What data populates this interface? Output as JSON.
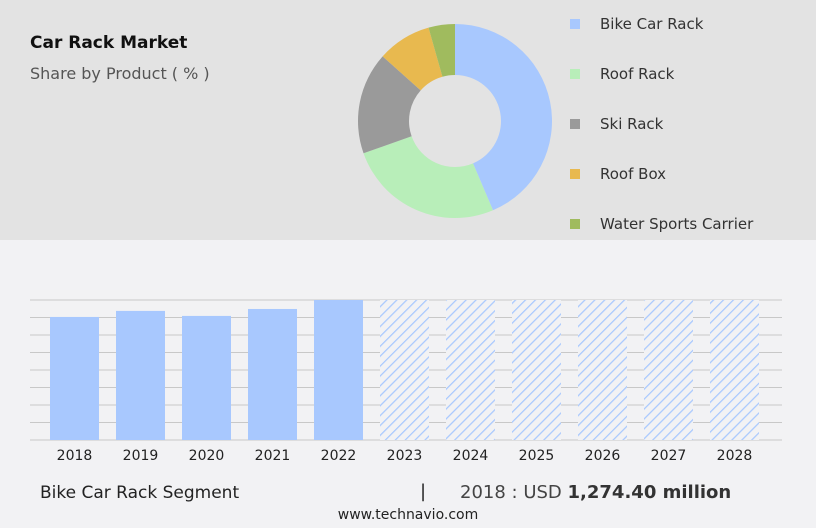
{
  "header": {
    "title": "Car Rack Market",
    "subtitle": "Share by Product ( % )"
  },
  "chart_data": [
    {
      "type": "pie",
      "variant": "donut",
      "title": "Car Rack Market",
      "subtitle": "Share by Product ( % )",
      "legend_position": "right",
      "slices": [
        {
          "name": "Bike Car Rack",
          "value": 43.6,
          "color": "#a8c8fe"
        },
        {
          "name": "Roof Rack",
          "value": 26,
          "color": "#b8eeb9"
        },
        {
          "name": "Ski Rack",
          "value": 17,
          "color": "#9a9a9a"
        },
        {
          "name": "Roof Box",
          "value": 9,
          "color": "#e8b94f"
        },
        {
          "name": "Water Sports Carrier",
          "value": 4.4,
          "color": "#a0bb5e"
        }
      ]
    },
    {
      "type": "bar",
      "categories": [
        "2018",
        "2019",
        "2020",
        "2021",
        "2022",
        "2023",
        "2024",
        "2025",
        "2026",
        "2027",
        "2028"
      ],
      "values": [
        1274.4,
        1337,
        1285,
        1357,
        1450,
        null,
        null,
        null,
        null,
        null,
        null
      ],
      "forecast": [
        "2023",
        "2024",
        "2025",
        "2026",
        "2027",
        "2028"
      ],
      "ylim": [
        0,
        1450
      ],
      "grid": true,
      "color": "#a8c8fe",
      "legend_position": "none"
    }
  ],
  "footer": {
    "segment": "Bike Car Rack Segment",
    "separator": "|",
    "year_label": "2018 : USD",
    "value": "1,274.40 million",
    "site": "www.technavio.com"
  }
}
